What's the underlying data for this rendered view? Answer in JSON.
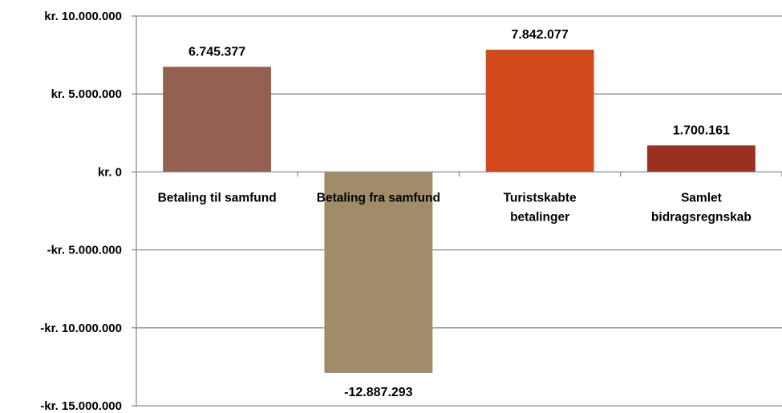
{
  "chart_data": {
    "type": "bar",
    "categories": [
      [
        "Betaling til samfund"
      ],
      [
        "Betaling fra samfund"
      ],
      [
        "Turistskabte",
        "betalinger"
      ],
      [
        "Samlet",
        "bidragsregnskab"
      ]
    ],
    "values": [
      6745377,
      -12887293,
      7842077,
      1700161
    ],
    "data_labels": [
      "6.745.377",
      "-12.887.293",
      "7.842.077",
      "1.700.161"
    ],
    "bar_colors": [
      "#936051",
      "#a18c6a",
      "#d2491b",
      "#9b3020"
    ],
    "ylim": [
      -15000000,
      10000000
    ],
    "yticks": [
      {
        "value": 10000000,
        "label": "kr. 10.000.000"
      },
      {
        "value": 5000000,
        "label": "kr. 5.000.000"
      },
      {
        "value": 0,
        "label": "kr. 0"
      },
      {
        "value": -5000000,
        "label": "-kr. 5.000.000"
      },
      {
        "value": -10000000,
        "label": "-kr. 10.000.000"
      },
      {
        "value": -15000000,
        "label": "-kr. 15.000.000"
      }
    ],
    "grid": true,
    "gridline_color": "#8c8c8c",
    "title": "",
    "xlabel": "",
    "ylabel": ""
  }
}
